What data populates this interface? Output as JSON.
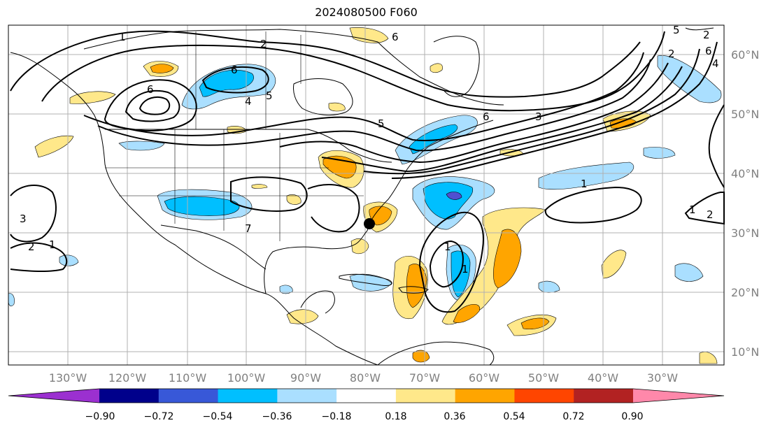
{
  "title": "2024080500 F060",
  "map": {
    "lon_labels": [
      "130°W",
      "120°W",
      "110°W",
      "100°W",
      "90°W",
      "80°W",
      "70°W",
      "60°W",
      "50°W",
      "40°W",
      "30°W"
    ],
    "lat_labels": [
      "60°N",
      "50°N",
      "40°N",
      "30°N",
      "20°N",
      "10°N"
    ],
    "contour_labels": [
      "1",
      "2",
      "6",
      "6",
      "6",
      "4",
      "5",
      "5",
      "6",
      "2",
      "5",
      "3",
      "1",
      "1",
      "1",
      "2",
      "3",
      "2",
      "1",
      "2",
      "6",
      "4",
      "1",
      "7"
    ],
    "marker": "storm-center-dot"
  },
  "colorbar": {
    "tick_labels": [
      "−0.90",
      "−0.72",
      "−0.54",
      "−0.36",
      "−0.18",
      "0.18",
      "0.36",
      "0.54",
      "0.72",
      "0.90"
    ],
    "colors": [
      "#9b30d0",
      "#00008b",
      "#3858d8",
      "#00bfff",
      "#aadfff",
      "#ffffff",
      "#ffe88a",
      "#ffa500",
      "#ff4500",
      "#b22222",
      "#ff88aa"
    ]
  },
  "colors": {
    "neg_light": "#aadfff",
    "neg_mid": "#00bfff",
    "neg_strong": "#3858d8",
    "neg_deep": "#5050d0",
    "pos_light": "#ffe88a",
    "pos_mid": "#ffa500",
    "grid": "#b0b0b0",
    "coast": "#000000"
  }
}
